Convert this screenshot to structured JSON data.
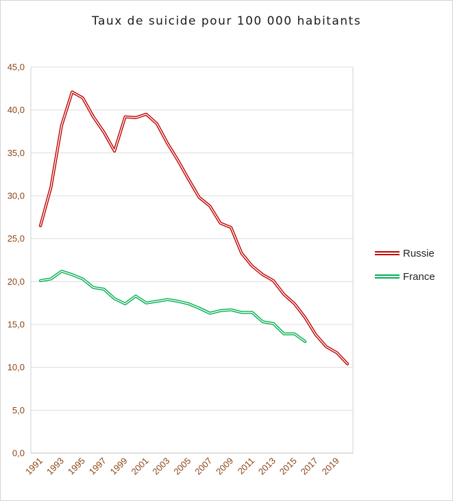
{
  "chart_data": {
    "type": "line",
    "title": "Taux de suicide pour 100 000 habitants",
    "x": [
      1991,
      1992,
      1993,
      1994,
      1995,
      1996,
      1997,
      1998,
      1999,
      2000,
      2001,
      2002,
      2003,
      2004,
      2005,
      2006,
      2007,
      2008,
      2009,
      2010,
      2011,
      2012,
      2013,
      2014,
      2015,
      2016,
      2017,
      2018,
      2019,
      2020
    ],
    "x_tick_labels": [
      "1991",
      "1993",
      "1995",
      "1997",
      "1999",
      "2001",
      "2003",
      "2005",
      "2007",
      "2009",
      "2011",
      "2013",
      "2015",
      "2017",
      "2019"
    ],
    "y_tick_labels": [
      "0,0",
      "5,0",
      "10,0",
      "15,0",
      "20,0",
      "25,0",
      "30,0",
      "35,0",
      "40,0",
      "45,0"
    ],
    "ylim": [
      0,
      45
    ],
    "grid": "horizontal",
    "legend_position": "right",
    "series": [
      {
        "name": "Russie",
        "color": "#c00000",
        "values": [
          26.5,
          31.0,
          38.2,
          42.1,
          41.4,
          39.2,
          37.4,
          35.2,
          39.2,
          39.1,
          39.5,
          38.4,
          36.1,
          34.1,
          31.9,
          29.8,
          28.8,
          26.8,
          26.3,
          23.3,
          21.8,
          20.8,
          20.1,
          18.5,
          17.4,
          15.8,
          13.8,
          12.4,
          11.7,
          10.4
        ]
      },
      {
        "name": "France",
        "color": "#00b050",
        "values": [
          20.1,
          20.3,
          21.2,
          20.8,
          20.3,
          19.3,
          19.1,
          18.0,
          17.4,
          18.3,
          17.5,
          17.7,
          17.9,
          17.7,
          17.4,
          16.9,
          16.3,
          16.6,
          16.7,
          16.4,
          16.4,
          15.3,
          15.1,
          13.9,
          13.9,
          13.0,
          null,
          null,
          null,
          null
        ]
      }
    ]
  }
}
